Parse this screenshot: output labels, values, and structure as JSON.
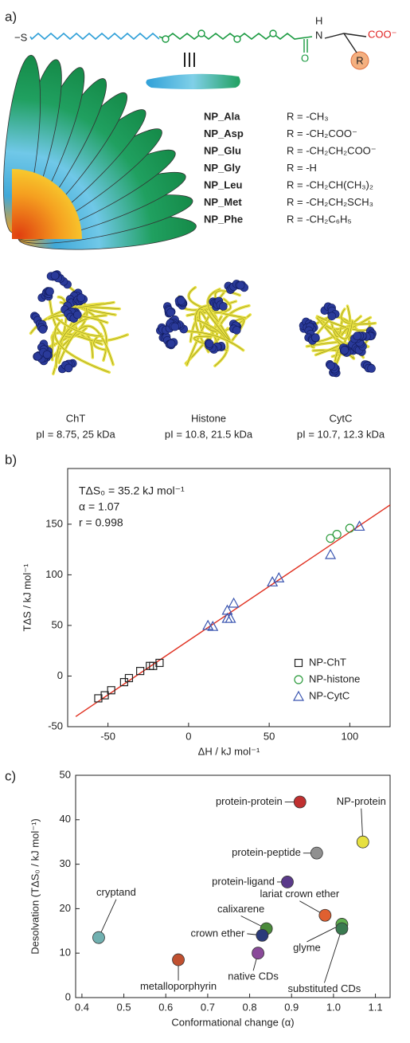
{
  "panel_labels": [
    "a)",
    "b)",
    "c)"
  ],
  "molecule": {
    "thiol": "−S",
    "amide_h": "H",
    "amide_n": "N",
    "carbonyl_o": "O",
    "r_group": "R",
    "carboxylate": "COO⁻"
  },
  "nanoparticles": [
    {
      "name": "NP_Ala",
      "r_group": "R = -CH₃"
    },
    {
      "name": "NP_Asp",
      "r_group": "R = -CH₂COO⁻"
    },
    {
      "name": "NP_Glu",
      "r_group": "R = -CH₂CH₂COO⁻"
    },
    {
      "name": "NP_Gly",
      "r_group": "R = -H"
    },
    {
      "name": "NP_Leu",
      "r_group": "R = -CH₂CH(CH₃)₂"
    },
    {
      "name": "NP_Met",
      "r_group": "R = -CH₂CH₂SCH₃"
    },
    {
      "name": "NP_Phe",
      "r_group": "R = -CH₂C₆H₅"
    }
  ],
  "proteins": [
    {
      "name": "ChT",
      "properties": "pI = 8.75, 25 kDa"
    },
    {
      "name": "Histone",
      "properties": "pI = 10.8, 21.5 kDa"
    },
    {
      "name": "CytC",
      "properties": "pI = 10.7, 12.3 kDa"
    }
  ],
  "chart_data": [
    {
      "type": "scatter",
      "annotations": [
        "TΔS₀ = 35.2 kJ mol⁻¹",
        "α = 1.07",
        "r = 0.998"
      ],
      "xlabel": "ΔH / kJ mol⁻¹",
      "ylabel": "TΔS / kJ mol⁻¹",
      "xlim": [
        -75,
        125
      ],
      "ylim": [
        -50,
        205
      ],
      "xticks": [
        -50,
        0,
        50,
        100
      ],
      "yticks": [
        -50,
        0,
        50,
        100,
        150
      ],
      "legend": "lower right",
      "series": [
        {
          "name": "NP-ChT",
          "color": "#222222",
          "marker": "square",
          "x": [
            -56,
            -52,
            -48,
            -40,
            -37,
            -30,
            -24,
            -22,
            -18
          ],
          "values": [
            -22,
            -19,
            -14,
            -6,
            -2,
            5,
            10,
            10,
            13
          ]
        },
        {
          "name": "NP-histone",
          "color": "#2a9a3a",
          "marker": "circle",
          "x": [
            88,
            92,
            100
          ],
          "values": [
            136,
            140,
            146
          ]
        },
        {
          "name": "NP-CytC",
          "color": "#3a55b0",
          "marker": "triangle",
          "x": [
            12,
            15,
            24,
            24,
            26,
            28,
            52,
            56,
            88,
            106
          ],
          "values": [
            50,
            49,
            65,
            57,
            57,
            72,
            93,
            97,
            120,
            148
          ]
        }
      ],
      "fit_line": {
        "x": [
          -70,
          125
        ],
        "values": [
          -40,
          169
        ],
        "color": "#e03020"
      }
    },
    {
      "type": "labeled-scatter",
      "xlabel": "Conformational change (α)",
      "ylabel": "Desolvation (TΔS₀ / kJ mol⁻¹)",
      "xlim": [
        0.385,
        1.135
      ],
      "ylim": [
        0,
        50
      ],
      "xticks": [
        0.4,
        0.5,
        0.6,
        0.7,
        0.8,
        0.9,
        {
          "value": 1.0,
          "label": "1.0"
        },
        1.1
      ],
      "yticks": [
        0,
        10,
        20,
        30,
        40,
        50
      ],
      "labels": [
        "protein-protein",
        "NP-protein",
        "protein-peptide",
        "protein-ligand",
        "lariat crown ether",
        "calixarene",
        "crown ether",
        "cryptand",
        "glyme",
        "substituted CDs",
        "native CDs",
        "metalloporphyrin"
      ],
      "x": [
        0.92,
        1.07,
        0.96,
        0.89,
        0.98,
        0.84,
        0.83,
        0.44,
        1.02,
        1.02,
        0.82,
        0.63
      ],
      "values": [
        44,
        35,
        32.5,
        26,
        18.5,
        15.5,
        14,
        13.5,
        16.5,
        15.5,
        10,
        8.5
      ],
      "colors": [
        "#c03030",
        "#e6e040",
        "#909090",
        "#5a3a8a",
        "#e06030",
        "#4a8a3a",
        "#2a3a7a",
        "#70b0b0",
        "#60b050",
        "#3a7a50",
        "#8a4a9a",
        "#c05030"
      ]
    }
  ]
}
